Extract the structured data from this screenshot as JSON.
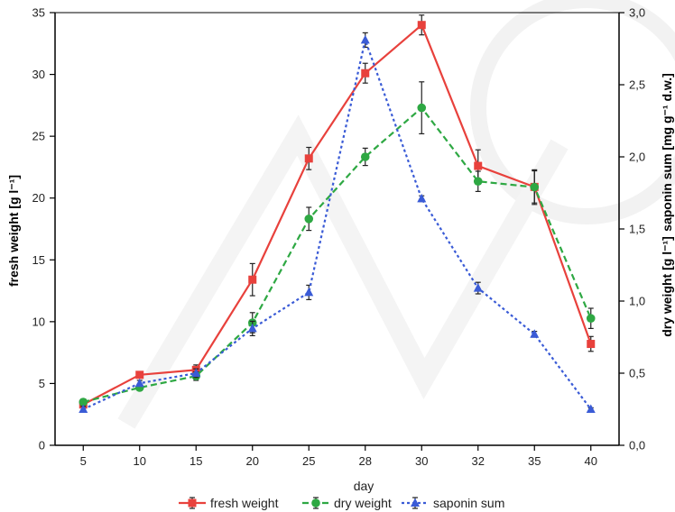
{
  "chart_data": {
    "type": "line",
    "categories": [
      "5",
      "10",
      "15",
      "20",
      "25",
      "28",
      "30",
      "32",
      "35",
      "40"
    ],
    "xlabel": "day",
    "y_left": {
      "label": "fresh weight [g l⁻¹]",
      "ylim": [
        0,
        35
      ],
      "ticks": [
        "0",
        "5",
        "10",
        "15",
        "20",
        "25",
        "30",
        "35"
      ],
      "color": "#e8413c"
    },
    "y_right": {
      "ylim": [
        0,
        3
      ],
      "ticks": [
        "0,0",
        "0,5",
        "1,0",
        "1,5",
        "2,0",
        "2,5",
        "3,0"
      ],
      "label_top": "saponin sum [mg g⁻¹ d.w.]",
      "label_top_color": "#3a5bd6",
      "label_bottom": "dry weight [g l⁻¹]",
      "label_bottom_color": "#2ea843"
    },
    "series": [
      {
        "name": "fresh weight",
        "axis": "left",
        "color": "#e8413c",
        "line": "solid",
        "marker": "square",
        "values": [
          3.3,
          5.7,
          6.1,
          13.4,
          23.2,
          30.1,
          34.0,
          22.6,
          20.9,
          8.2
        ],
        "errors": [
          0.2,
          0.2,
          0.4,
          1.3,
          0.9,
          0.8,
          0.8,
          1.3,
          1.3,
          0.6
        ]
      },
      {
        "name": "dry weight",
        "axis": "right",
        "color": "#2ea843",
        "line": "dashed",
        "marker": "circle",
        "values": [
          0.3,
          0.4,
          0.48,
          0.85,
          1.57,
          2.0,
          2.34,
          1.83,
          1.79,
          0.88
        ],
        "errors": [
          0.02,
          0.02,
          0.03,
          0.07,
          0.08,
          0.06,
          0.18,
          0.07,
          0.12,
          0.07
        ]
      },
      {
        "name": "saponin sum",
        "axis": "right",
        "color": "#3a5bd6",
        "line": "dotted",
        "marker": "triangle",
        "values": [
          0.25,
          0.43,
          0.5,
          0.81,
          1.06,
          2.81,
          1.71,
          1.09,
          0.77,
          0.25
        ],
        "errors": [
          0.02,
          0.02,
          0.03,
          0.05,
          0.05,
          0.05,
          0.02,
          0.04,
          0.02,
          0.01
        ]
      }
    ]
  }
}
